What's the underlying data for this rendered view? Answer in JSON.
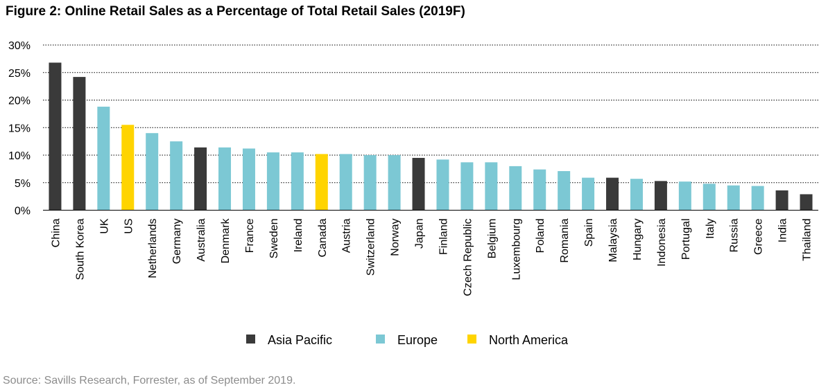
{
  "title": "Figure 2: Online Retail Sales as a Percentage of Total Retail Sales (2019F)",
  "source": "Source: Savills Research, Forrester, as of September 2019.",
  "colors": {
    "Asia Pacific": "#3a3a3a",
    "Europe": "#7cc8d4",
    "North America": "#ffd400"
  },
  "chart_data": {
    "type": "bar",
    "title": "Figure 2: Online Retail Sales as a Percentage of Total Retail Sales (2019F)",
    "xlabel": "",
    "ylabel": "",
    "ylim": [
      0,
      30
    ],
    "yticks": [
      "0%",
      "5%",
      "10%",
      "15%",
      "20%",
      "25%",
      "30%"
    ],
    "ytick_values": [
      0,
      5,
      10,
      15,
      20,
      25,
      30
    ],
    "grid": true,
    "legend_position": "bottom",
    "legend": [
      "Asia Pacific",
      "Europe",
      "North America"
    ],
    "categories": [
      "China",
      "South Korea",
      "UK",
      "US",
      "Netherlands",
      "Germany",
      "Australia",
      "Denmark",
      "France",
      "Sweden",
      "Ireland",
      "Canada",
      "Austria",
      "Switzerland",
      "Norway",
      "Japan",
      "Finland",
      "Czech Republic",
      "Belgium",
      "Luxembourg",
      "Poland",
      "Romania",
      "Spain",
      "Malaysia",
      "Hungary",
      "Indonesia",
      "Portugal",
      "Italy",
      "Russia",
      "Greece",
      "India",
      "Thailand"
    ],
    "values": [
      26.8,
      24.2,
      18.8,
      15.5,
      14.0,
      12.5,
      11.4,
      11.4,
      11.2,
      10.5,
      10.5,
      10.2,
      10.2,
      10.0,
      10.0,
      9.5,
      9.2,
      8.7,
      8.7,
      8.0,
      7.4,
      7.1,
      5.9,
      5.9,
      5.7,
      5.3,
      5.2,
      4.8,
      4.5,
      4.4,
      3.6,
      2.9
    ],
    "regions": [
      "Asia Pacific",
      "Asia Pacific",
      "Europe",
      "North America",
      "Europe",
      "Europe",
      "Asia Pacific",
      "Europe",
      "Europe",
      "Europe",
      "Europe",
      "North America",
      "Europe",
      "Europe",
      "Europe",
      "Asia Pacific",
      "Europe",
      "Europe",
      "Europe",
      "Europe",
      "Europe",
      "Europe",
      "Europe",
      "Asia Pacific",
      "Europe",
      "Asia Pacific",
      "Europe",
      "Europe",
      "Europe",
      "Europe",
      "Asia Pacific",
      "Asia Pacific"
    ]
  }
}
